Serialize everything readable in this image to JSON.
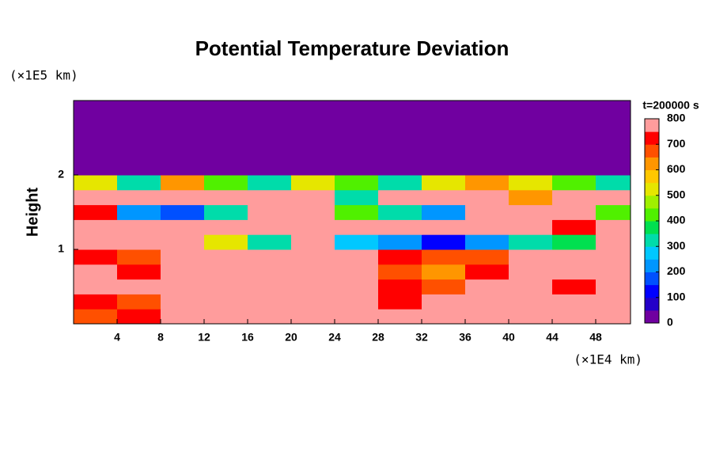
{
  "chart_data": {
    "type": "heatmap",
    "title": "Potential Temperature Deviation",
    "y_unit": "(×1E5 km)",
    "y_label": "Height",
    "x_unit": "(×1E4 km)",
    "colorbar_title": "t=200000 s",
    "xlim": [
      0,
      51.2
    ],
    "ylim": [
      0,
      3
    ],
    "xticks": [
      4,
      8,
      12,
      16,
      20,
      24,
      28,
      32,
      36,
      40,
      44,
      48
    ],
    "yticks": [
      1,
      2
    ],
    "x_edges": [
      0,
      4,
      8,
      12,
      16,
      20,
      24,
      28,
      32,
      36,
      40,
      44,
      48,
      51.2
    ],
    "y_edges": [
      0,
      0.2,
      0.4,
      0.6,
      0.8,
      1.0,
      1.2,
      1.4,
      1.6,
      1.8,
      2.0,
      2.2,
      2.4,
      2.6,
      2.8,
      3.0
    ],
    "z": [
      [
        650,
        700,
        800,
        800,
        800,
        800,
        800,
        800,
        800,
        750,
        800,
        800,
        800
      ],
      [
        700,
        650,
        800,
        800,
        800,
        800,
        800,
        700,
        750,
        800,
        800,
        800,
        800
      ],
      [
        750,
        800,
        750,
        800,
        750,
        800,
        800,
        700,
        650,
        750,
        800,
        720,
        800
      ],
      [
        800,
        700,
        800,
        800,
        800,
        750,
        800,
        650,
        600,
        700,
        750,
        750,
        800
      ],
      [
        700,
        650,
        800,
        800,
        800,
        800,
        800,
        700,
        650,
        650,
        800,
        800,
        800
      ],
      [
        800,
        800,
        750,
        500,
        300,
        800,
        250,
        200,
        100,
        200,
        300,
        350,
        800
      ],
      [
        800,
        800,
        800,
        800,
        800,
        800,
        800,
        800,
        800,
        800,
        800,
        700,
        800
      ],
      [
        700,
        200,
        150,
        300,
        800,
        800,
        400,
        300,
        200,
        800,
        800,
        800,
        400
      ],
      [
        800,
        800,
        800,
        800,
        800,
        800,
        300,
        800,
        800,
        800,
        600,
        800,
        800
      ],
      [
        500,
        300,
        600,
        400,
        300,
        500,
        400,
        300,
        500,
        600,
        500,
        400,
        300
      ],
      [
        0,
        0,
        0,
        0,
        0,
        0,
        0,
        0,
        0,
        0,
        0,
        0,
        0
      ],
      [
        0,
        0,
        0,
        0,
        0,
        0,
        0,
        0,
        0,
        0,
        0,
        0,
        0
      ],
      [
        0,
        0,
        0,
        0,
        0,
        0,
        0,
        0,
        0,
        0,
        0,
        0,
        0
      ],
      [
        0,
        0,
        0,
        0,
        0,
        0,
        0,
        0,
        0,
        0,
        0,
        0,
        0
      ],
      [
        0,
        0,
        0,
        0,
        0,
        0,
        0,
        0,
        0,
        0,
        0,
        0,
        0
      ]
    ],
    "clim": [
      0,
      800
    ],
    "cticks": [
      0,
      100,
      200,
      300,
      400,
      500,
      600,
      700,
      800
    ],
    "level_step": 50,
    "colors": [
      "#7000a0",
      "#2400c8",
      "#0000ff",
      "#0050ff",
      "#0096ff",
      "#00c8ff",
      "#00dcaa",
      "#00e050",
      "#50f000",
      "#a0f000",
      "#e6e600",
      "#ffc800",
      "#ff9600",
      "#ff5000",
      "#ff0000",
      "#ff9c9c"
    ]
  }
}
